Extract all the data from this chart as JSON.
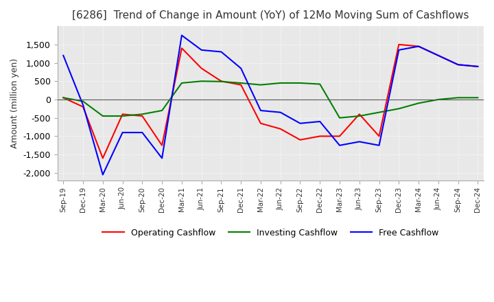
{
  "title": "[6286]  Trend of Change in Amount (YoY) of 12Mo Moving Sum of Cashflows",
  "ylabel": "Amount (million yen)",
  "x_labels": [
    "Sep-19",
    "Dec-19",
    "Mar-20",
    "Jun-20",
    "Sep-20",
    "Dec-20",
    "Mar-21",
    "Jun-21",
    "Sep-21",
    "Dec-21",
    "Mar-22",
    "Jun-22",
    "Sep-22",
    "Dec-22",
    "Mar-23",
    "Jun-23",
    "Sep-23",
    "Dec-23",
    "Mar-24",
    "Jun-24",
    "Sep-24",
    "Dec-24"
  ],
  "operating": [
    50,
    -200,
    -1600,
    -400,
    -450,
    -1250,
    1400,
    850,
    500,
    400,
    -650,
    -800,
    -1100,
    -1000,
    -1000,
    -400,
    -1000,
    1500,
    1450,
    1200,
    950,
    900
  ],
  "investing": [
    50,
    -50,
    -450,
    -450,
    -400,
    -300,
    450,
    500,
    490,
    450,
    400,
    450,
    450,
    420,
    -500,
    -450,
    -350,
    -250,
    -100,
    0,
    50,
    50
  ],
  "free": [
    1200,
    -150,
    -2050,
    -900,
    -900,
    -1600,
    1750,
    1350,
    1300,
    850,
    -300,
    -350,
    -650,
    -600,
    -1250,
    -1150,
    -1250,
    1350,
    1450,
    1200,
    950,
    900
  ],
  "ylim": [
    -2200,
    2000
  ],
  "yticks": [
    -2000,
    -1500,
    -1000,
    -500,
    0,
    500,
    1000,
    1500
  ],
  "operating_color": "#ff0000",
  "investing_color": "#008000",
  "free_color": "#0000ff",
  "bg_color": "#ffffff",
  "plot_bg_color": "#e8e8e8",
  "grid_color": "#ffffff",
  "title_fontsize": 11,
  "legend_labels": [
    "Operating Cashflow",
    "Investing Cashflow",
    "Free Cashflow"
  ]
}
